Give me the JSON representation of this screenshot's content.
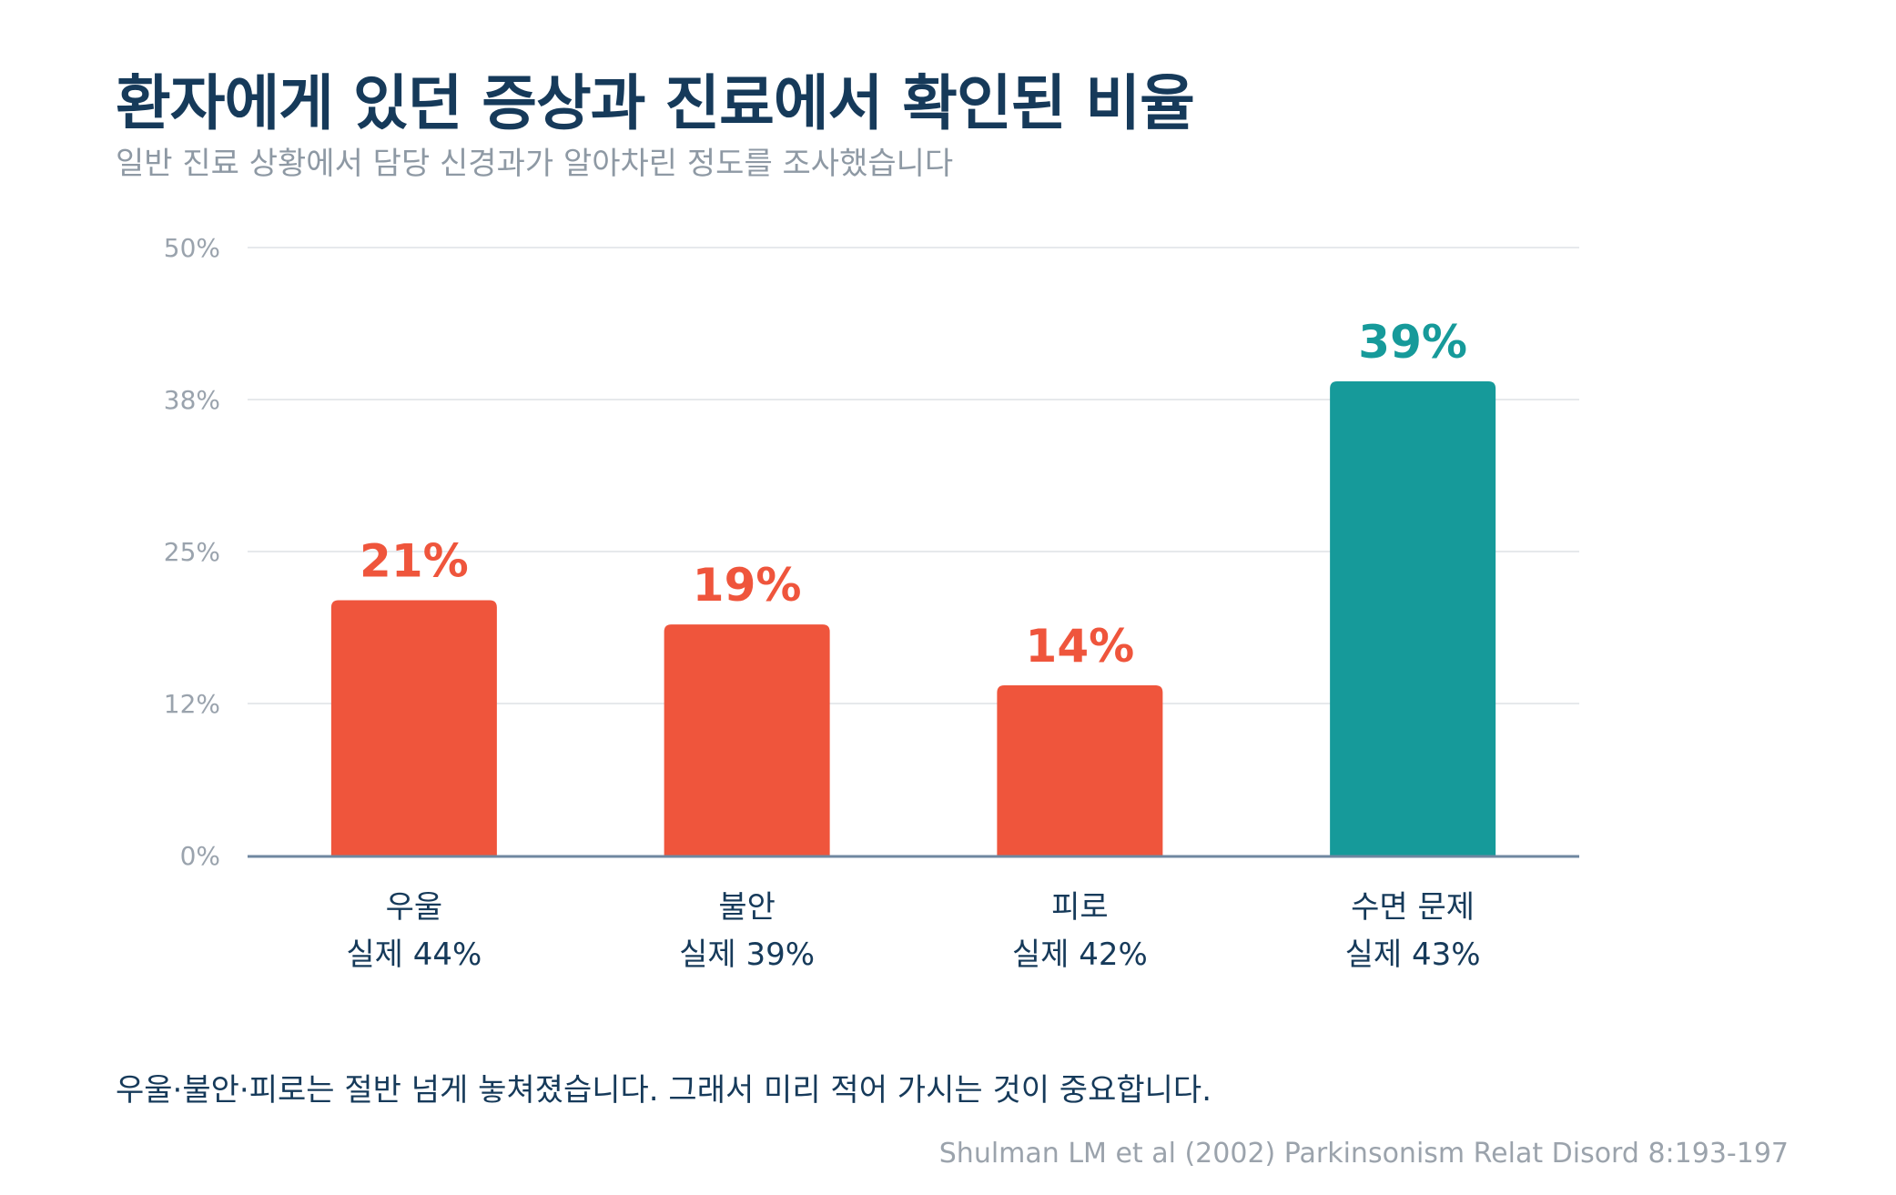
{
  "title": "환자에게 있던 증상과 진료에서 확인된 비율",
  "subtitle": "일반 진료 상황에서 담당 신경과가 알아차린 정도를 조사했습니다",
  "footnote": "우울·불안·피로는 절반 넘게 놓쳐졌습니다. 그래서 미리 적어 가시는 것이 중요합니다.",
  "source": "Shulman LM et al (2002) Parkinsonism Relat Disord 8:193-197",
  "colors": {
    "missed": "#ef553c",
    "sleep": "#169a9a",
    "grid": "#e6e9ec",
    "axis": "#6f87a0",
    "tick_text": "#9aa3ad",
    "category_text": "#163a5a"
  },
  "chart_data": {
    "type": "bar",
    "categories": [
      "우울",
      "불안",
      "피로",
      "수면 문제"
    ],
    "actual_labels": [
      "실제 44%",
      "실제 39%",
      "실제 42%",
      "실제 43%"
    ],
    "values": [
      21,
      19,
      14,
      39
    ],
    "value_labels": [
      "21%",
      "19%",
      "14%",
      "39%"
    ],
    "bar_colors": [
      "#ef553c",
      "#ef553c",
      "#ef553c",
      "#169a9a"
    ],
    "yticks": [
      0,
      12.5,
      25,
      37.5,
      50
    ],
    "ytick_labels": [
      "0%",
      "12%",
      "25%",
      "38%",
      "50%"
    ],
    "ylim": [
      0,
      50
    ],
    "grid": true,
    "legend": "none"
  }
}
